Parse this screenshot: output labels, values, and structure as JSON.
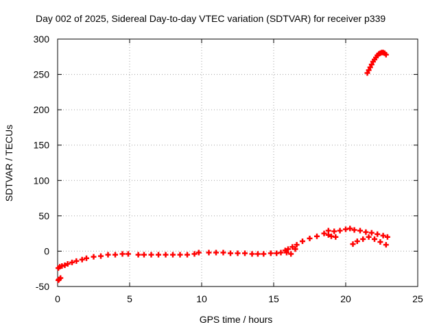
{
  "chart_data": {
    "type": "scatter",
    "title": "Day 002 of 2025, Sidereal Day-to-day VTEC variation (SDTVAR) for receiver p339",
    "xlabel": "GPS time / hours",
    "ylabel": "SDTVAR / TECUs",
    "xlim": [
      0,
      25
    ],
    "ylim": [
      -50,
      300
    ],
    "xticks": [
      0,
      5,
      10,
      15,
      20,
      25
    ],
    "yticks": [
      -50,
      0,
      50,
      100,
      150,
      200,
      250,
      300
    ],
    "grid": true,
    "marker": "plus",
    "color": "#ff0000",
    "series": [
      {
        "name": "main",
        "x": [
          0.05,
          0.15,
          0.3,
          0.5,
          0.7,
          1.0,
          1.3,
          1.7,
          2.0,
          2.5,
          3.0,
          3.5,
          4.0,
          4.5,
          4.9,
          5.6,
          6.0,
          6.5,
          7.0,
          7.5,
          8.0,
          8.5,
          9.0,
          9.5,
          9.8,
          10.5,
          11.0,
          11.5,
          12.0,
          12.5,
          13.0,
          13.5,
          13.9,
          14.3,
          14.8,
          15.2,
          15.5,
          15.8,
          16.0,
          16.3,
          16.6,
          17.0,
          17.5,
          18.0,
          18.5,
          18.8,
          19.2,
          19.6,
          20.0,
          20.3,
          20.6,
          21.0,
          21.4,
          21.8,
          22.2,
          22.6,
          22.9
        ],
        "y": [
          -24,
          -22,
          -21,
          -20,
          -18,
          -16,
          -14,
          -12,
          -10,
          -8,
          -7,
          -5,
          -5,
          -4,
          -4,
          -5,
          -5,
          -5,
          -5,
          -5,
          -5,
          -5,
          -5,
          -4,
          -2,
          -2,
          -2,
          -2,
          -3,
          -3,
          -3,
          -4,
          -4,
          -4,
          -3,
          -3,
          -2,
          1,
          3,
          6,
          9,
          14,
          18,
          21,
          25,
          29,
          28,
          29,
          31,
          32,
          30,
          29,
          27,
          26,
          24,
          22,
          20
        ]
      },
      {
        "name": "low-branch",
        "x": [
          15.9,
          16.2,
          16.5,
          18.8,
          19.0,
          19.3,
          20.5,
          20.8,
          21.2,
          21.6,
          22.0,
          22.4,
          22.8
        ],
        "y": [
          -2,
          -4,
          3,
          23,
          21,
          20,
          10,
          14,
          17,
          20,
          17,
          13,
          9
        ]
      },
      {
        "name": "start-outlier",
        "x": [
          0.05,
          0.1,
          0.2
        ],
        "y": [
          -41,
          -40,
          -38
        ]
      },
      {
        "name": "high-arc",
        "x": [
          21.5,
          21.6,
          21.7,
          21.8,
          21.9,
          22.0,
          22.1,
          22.2,
          22.3,
          22.4,
          22.5,
          22.6,
          22.7,
          22.8
        ],
        "y": [
          252,
          256,
          260,
          264,
          268,
          271,
          274,
          277,
          279,
          280,
          281,
          281,
          280,
          278
        ]
      }
    ]
  }
}
